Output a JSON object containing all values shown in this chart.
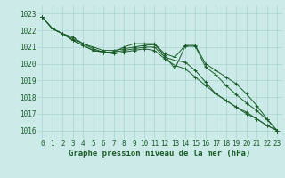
{
  "background_color": "#cceae7",
  "grid_color": "#aad4d0",
  "line_color": "#1a5c2a",
  "marker_color": "#1a5c2a",
  "xlabel": "Graphe pression niveau de la mer (hPa)",
  "xlabel_fontsize": 6.5,
  "xlabel_color": "#1a5c2a",
  "tick_color": "#1a5c2a",
  "tick_fontsize": 5.5,
  "ylim": [
    1015.5,
    1023.5
  ],
  "yticks": [
    1016,
    1017,
    1018,
    1019,
    1020,
    1021,
    1022,
    1023
  ],
  "xlim": [
    -0.5,
    23.5
  ],
  "xticks": [
    0,
    1,
    2,
    3,
    4,
    5,
    6,
    7,
    8,
    9,
    10,
    11,
    12,
    13,
    14,
    15,
    16,
    17,
    18,
    19,
    20,
    21,
    22,
    23
  ],
  "series": [
    [
      1022.8,
      1022.1,
      1021.8,
      1021.6,
      1021.2,
      1021.0,
      1020.8,
      1020.8,
      1020.9,
      1021.0,
      1021.1,
      1021.15,
      1020.5,
      1019.7,
      1021.05,
      1021.05,
      1019.8,
      1019.35,
      1018.7,
      1018.15,
      1017.65,
      1017.2,
      1016.65,
      1016.0
    ],
    [
      1022.8,
      1022.1,
      1021.8,
      1021.5,
      1021.2,
      1020.9,
      1020.7,
      1020.7,
      1021.0,
      1021.2,
      1021.2,
      1021.2,
      1020.6,
      1020.4,
      1021.1,
      1021.1,
      1020.0,
      1019.6,
      1019.2,
      1018.8,
      1018.2,
      1017.5,
      1016.7,
      1016.0
    ],
    [
      1022.8,
      1022.1,
      1021.8,
      1021.4,
      1021.1,
      1020.8,
      1020.7,
      1020.7,
      1020.8,
      1020.9,
      1021.0,
      1021.0,
      1020.4,
      1020.2,
      1020.1,
      1019.6,
      1018.9,
      1018.2,
      1017.8,
      1017.4,
      1017.0,
      1016.7,
      1016.3,
      1016.0
    ],
    [
      1022.8,
      1022.1,
      1021.8,
      1021.4,
      1021.1,
      1020.8,
      1020.7,
      1020.6,
      1020.7,
      1020.8,
      1020.9,
      1020.8,
      1020.3,
      1019.9,
      1019.7,
      1019.2,
      1018.7,
      1018.2,
      1017.8,
      1017.4,
      1017.1,
      1016.7,
      1016.3,
      1016.0
    ]
  ]
}
